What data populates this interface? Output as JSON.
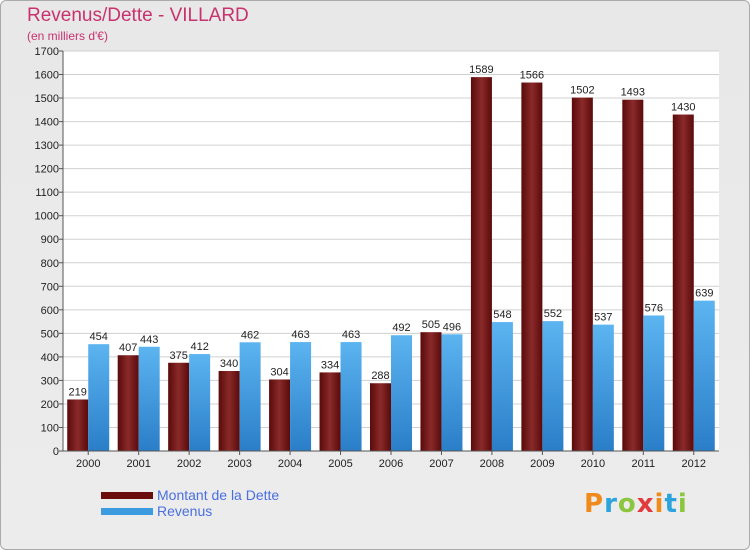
{
  "title": "Revenus/Dette - VILLARD",
  "subtitle": "(en milliers d'€)",
  "logo": {
    "letters": [
      "P",
      "r",
      "o",
      "x",
      "i",
      "t",
      "i"
    ],
    "colors": [
      "#f08a1c",
      "#2ba3dc",
      "#8cc63f",
      "#e23b3b",
      "#f08a1c",
      "#2ba3dc",
      "#8cc63f"
    ]
  },
  "chart_data": {
    "type": "bar",
    "categories": [
      "2000",
      "2001",
      "2002",
      "2003",
      "2004",
      "2005",
      "2006",
      "2007",
      "2008",
      "2009",
      "2010",
      "2011",
      "2012"
    ],
    "series": [
      {
        "name": "Montant de la Dette",
        "values": [
          219,
          407,
          375,
          340,
          304,
          334,
          288,
          505,
          1589,
          1566,
          1502,
          1493,
          1430
        ],
        "color": "#6b0d0d"
      },
      {
        "name": "Revenus",
        "values": [
          454,
          443,
          412,
          462,
          463,
          463,
          492,
          496,
          548,
          552,
          537,
          576,
          639
        ],
        "color": "#3d9ce0"
      }
    ],
    "ylim": [
      0,
      1700
    ],
    "yticks": [
      0,
      100,
      200,
      300,
      400,
      500,
      600,
      700,
      800,
      900,
      1000,
      1100,
      1200,
      1300,
      1400,
      1500,
      1600,
      1700
    ],
    "grid": true,
    "legend_placement": "bottom-left"
  }
}
